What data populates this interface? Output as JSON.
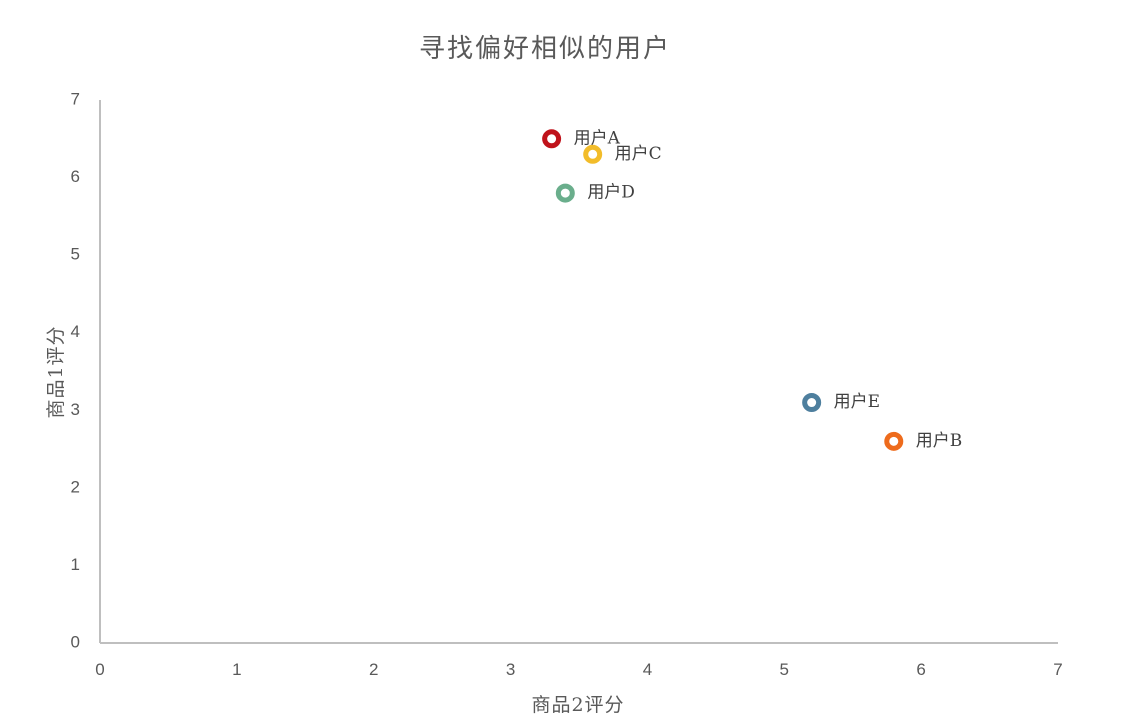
{
  "chart_data": {
    "type": "scatter",
    "title": "寻找偏好相似的用户",
    "xlabel": "商品2评分",
    "ylabel": "商品1评分",
    "xlim": [
      0,
      7
    ],
    "ylim": [
      0,
      7
    ],
    "xticks": [
      "0",
      "1",
      "2",
      "3",
      "4",
      "5",
      "6",
      "7"
    ],
    "yticks": [
      "0",
      "1",
      "2",
      "3",
      "4",
      "5",
      "6",
      "7"
    ],
    "grid": false,
    "legend": "none",
    "points": [
      {
        "label": "用户A",
        "x": 3.3,
        "y": 6.5,
        "color": "#C0131B"
      },
      {
        "label": "用户C",
        "x": 3.6,
        "y": 6.3,
        "color": "#F2BC2A"
      },
      {
        "label": "用户D",
        "x": 3.4,
        "y": 5.8,
        "color": "#6AAE8C"
      },
      {
        "label": "用户E",
        "x": 5.2,
        "y": 3.1,
        "color": "#4E7F9E"
      },
      {
        "label": "用户B",
        "x": 5.8,
        "y": 2.6,
        "color": "#EE6B1C"
      }
    ]
  }
}
